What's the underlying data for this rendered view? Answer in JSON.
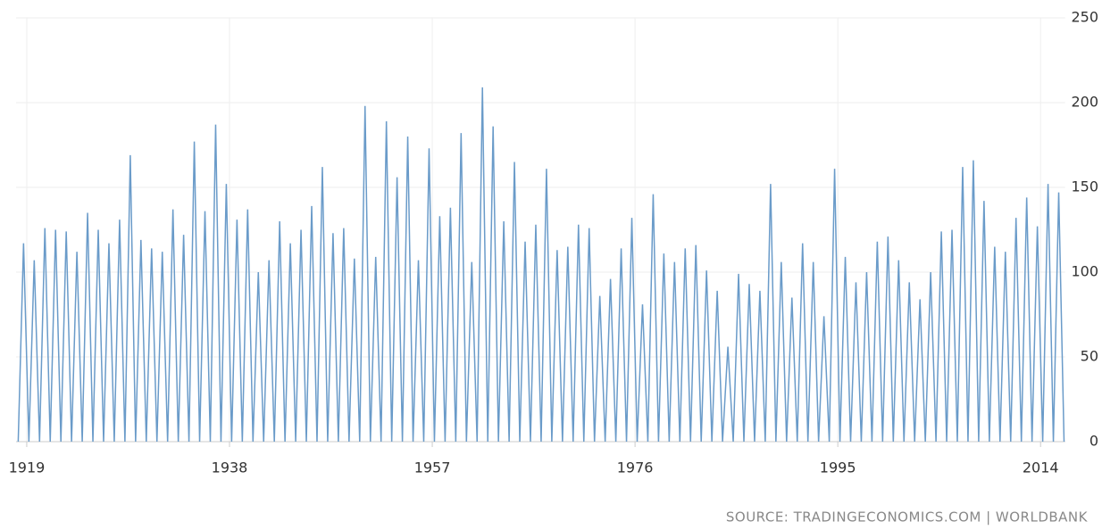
{
  "chart_data": {
    "type": "line",
    "source": "SOURCE: TRADINGECONOMICS.COM | WORLDBANK",
    "x": [
      1918.2,
      1918.7,
      1919.2,
      1919.7,
      1920.2,
      1920.7,
      1921.2,
      1921.7,
      1922.2,
      1922.7,
      1923.2,
      1923.7,
      1924.2,
      1924.7,
      1925.2,
      1925.7,
      1926.2,
      1926.7,
      1927.2,
      1927.7,
      1928.2,
      1928.7,
      1929.2,
      1929.7,
      1930.2,
      1930.7,
      1931.2,
      1931.7,
      1932.2,
      1932.7,
      1933.2,
      1933.7,
      1934.2,
      1934.7,
      1935.2,
      1935.7,
      1936.2,
      1936.7,
      1937.2,
      1937.7,
      1938.2,
      1938.7,
      1939.2,
      1939.7,
      1940.2,
      1940.7,
      1941.2,
      1941.7,
      1942.2,
      1942.7,
      1943.2,
      1943.7,
      1944.2,
      1944.7,
      1945.2,
      1945.7,
      1946.2,
      1946.7,
      1947.2,
      1947.7,
      1948.2,
      1948.7,
      1949.2,
      1949.7,
      1950.2,
      1950.7,
      1951.2,
      1951.7,
      1952.2,
      1952.7,
      1953.2,
      1953.7,
      1954.2,
      1954.7,
      1955.2,
      1955.7,
      1956.2,
      1956.7,
      1957.2,
      1957.7,
      1958.2,
      1958.7,
      1959.2,
      1959.7,
      1960.2,
      1960.7,
      1961.2,
      1961.7,
      1962.2,
      1962.7,
      1963.2,
      1963.7,
      1964.2,
      1964.7,
      1965.2,
      1965.7,
      1966.2,
      1966.7,
      1967.2,
      1967.7,
      1968.2,
      1968.7,
      1969.2,
      1969.7,
      1970.2,
      1970.7,
      1971.2,
      1971.7,
      1972.2,
      1972.7,
      1973.2,
      1973.7,
      1974.2,
      1974.7,
      1975.2,
      1975.7,
      1976.2,
      1976.7,
      1977.2,
      1977.7,
      1978.2,
      1978.7,
      1979.2,
      1979.7,
      1980.2,
      1980.7,
      1981.2,
      1981.7,
      1982.2,
      1982.7,
      1983.2,
      1983.7,
      1984.2,
      1984.7,
      1985.2,
      1985.7,
      1986.2,
      1986.7,
      1987.2,
      1987.7,
      1988.2,
      1988.7,
      1989.2,
      1989.7,
      1990.2,
      1990.7,
      1991.2,
      1991.7,
      1992.2,
      1992.7,
      1993.2,
      1993.7,
      1994.2,
      1994.7,
      1995.2,
      1995.7,
      1996.2,
      1996.7,
      1997.2,
      1997.7,
      1998.2,
      1998.7,
      1999.2,
      1999.7,
      2000.2,
      2000.7,
      2001.2,
      2001.7,
      2002.2,
      2002.7,
      2003.2,
      2003.7,
      2004.2,
      2004.7,
      2005.2,
      2005.7,
      2006.2,
      2006.7,
      2007.2,
      2007.7,
      2008.2,
      2008.7,
      2009.2,
      2009.7,
      2010.2,
      2010.7,
      2011.2,
      2011.7,
      2012.2,
      2012.7,
      2013.2,
      2013.7,
      2014.2,
      2014.7,
      2015.2,
      2015.7,
      2016.2
    ],
    "series": [
      {
        "color": "#6a9bc9",
        "values": [
          0,
          117,
          0,
          107,
          0,
          126,
          0,
          125,
          0,
          124,
          0,
          112,
          0,
          135,
          0,
          125,
          0,
          117,
          0,
          131,
          0,
          169,
          0,
          119,
          0,
          114,
          0,
          112,
          0,
          137,
          0,
          122,
          0,
          177,
          0,
          136,
          0,
          187,
          0,
          152,
          0,
          131,
          0,
          137,
          0,
          100,
          0,
          107,
          0,
          130,
          0,
          117,
          0,
          125,
          0,
          139,
          0,
          162,
          0,
          123,
          0,
          126,
          0,
          108,
          0,
          198,
          0,
          109,
          0,
          189,
          0,
          156,
          0,
          180,
          0,
          107,
          0,
          173,
          0,
          133,
          0,
          138,
          0,
          182,
          0,
          106,
          0,
          209,
          0,
          186,
          0,
          130,
          0,
          165,
          0,
          118,
          0,
          128,
          0,
          161,
          0,
          113,
          0,
          115,
          0,
          128,
          0,
          126,
          0,
          86,
          0,
          96,
          0,
          114,
          0,
          132,
          0,
          81,
          0,
          146,
          0,
          111,
          0,
          106,
          0,
          114,
          0,
          116,
          0,
          101,
          0,
          89,
          0,
          56,
          0,
          99,
          0,
          93,
          0,
          89,
          0,
          152,
          0,
          106,
          0,
          85,
          0,
          117,
          0,
          106,
          0,
          74,
          0,
          161,
          0,
          109,
          0,
          94,
          0,
          100,
          0,
          118,
          0,
          121,
          0,
          107,
          0,
          94,
          0,
          84,
          0,
          100,
          0,
          124,
          0,
          125,
          0,
          162,
          0,
          166,
          0,
          142,
          0,
          115,
          0,
          112,
          0,
          132,
          0,
          144,
          0,
          127,
          0,
          152,
          0,
          147,
          0
        ]
      }
    ],
    "xlim": [
      1918,
      2016.3
    ],
    "xticks": [
      1919,
      1938,
      1957,
      1976,
      1995,
      2014
    ],
    "ylim": [
      0,
      250
    ],
    "yticks": [
      0,
      50,
      100,
      150,
      200,
      250
    ],
    "grid": true
  }
}
